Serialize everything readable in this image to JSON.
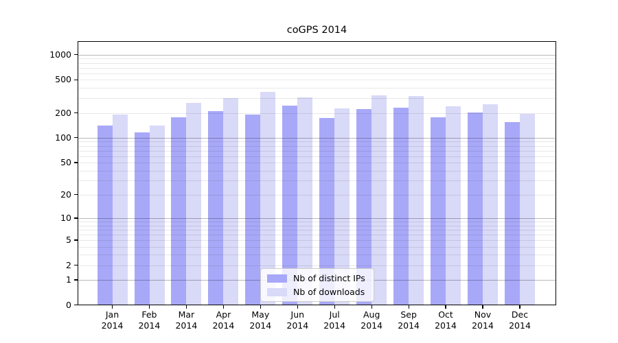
{
  "figure": {
    "title": "coGPS 2014"
  },
  "chart_data": {
    "type": "bar",
    "title": "coGPS 2014",
    "yscale": "log1p (log axis with 0 baseline)",
    "ylim": [
      0,
      1450
    ],
    "yticks": [
      0,
      1,
      2,
      5,
      10,
      20,
      50,
      100,
      200,
      500,
      1000
    ],
    "grid": "horizontal major+minor, drawn over bars",
    "legend_position": "lower center",
    "categories": [
      {
        "month": "Jan",
        "year": "2014"
      },
      {
        "month": "Feb",
        "year": "2014"
      },
      {
        "month": "Mar",
        "year": "2014"
      },
      {
        "month": "Apr",
        "year": "2014"
      },
      {
        "month": "May",
        "year": "2014"
      },
      {
        "month": "Jun",
        "year": "2014"
      },
      {
        "month": "Jul",
        "year": "2014"
      },
      {
        "month": "Aug",
        "year": "2014"
      },
      {
        "month": "Sep",
        "year": "2014"
      },
      {
        "month": "Oct",
        "year": "2014"
      },
      {
        "month": "Nov",
        "year": "2014"
      },
      {
        "month": "Dec",
        "year": "2014"
      }
    ],
    "series": [
      {
        "name": "Nb of distinct IPs",
        "color": "#a8a8f8",
        "values": [
          140,
          117,
          178,
          211,
          192,
          243,
          173,
          222,
          231,
          176,
          201,
          155
        ]
      },
      {
        "name": "Nb of downloads",
        "color": "#d9d9f8",
        "values": [
          190,
          142,
          262,
          302,
          360,
          306,
          227,
          325,
          322,
          240,
          254,
          196
        ]
      }
    ],
    "colors": {
      "grid_major": "#b9b9b9",
      "grid_minor": "#e8e8e8",
      "axis": "#000000"
    }
  }
}
